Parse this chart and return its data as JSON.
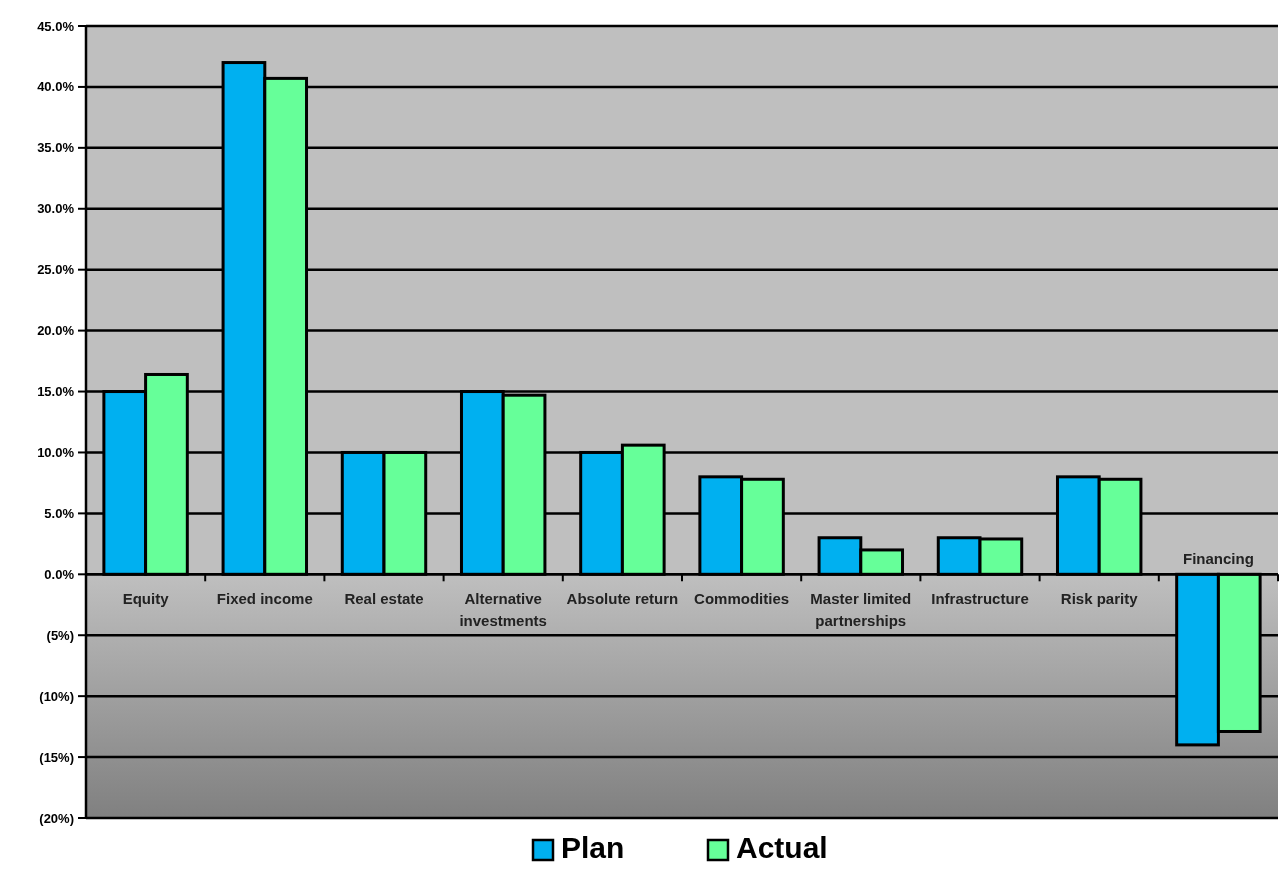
{
  "chart_data": {
    "type": "bar",
    "categories": [
      "Equity",
      "Fixed income",
      "Real estate",
      "Alternative investments",
      "Absolute return",
      "Commodities",
      "Master limited partnerships",
      "Infrastructure",
      "Risk parity",
      "Financing"
    ],
    "series": [
      {
        "name": "Plan",
        "color": "#00b0f0",
        "values": [
          15,
          42,
          10,
          15,
          10,
          8,
          3,
          3,
          8,
          -14
        ]
      },
      {
        "name": "Actual",
        "color": "#66ff99",
        "values": [
          16.4,
          40.7,
          10,
          14.7,
          10.6,
          7.8,
          2,
          2.9,
          7.8,
          -12.9
        ]
      }
    ],
    "ylim": [
      -20,
      45
    ],
    "yticks": [
      {
        "value": 45,
        "label": "45.0%"
      },
      {
        "value": 40,
        "label": "40.0%"
      },
      {
        "value": 35,
        "label": "35.0%"
      },
      {
        "value": 30,
        "label": "30.0%"
      },
      {
        "value": 25,
        "label": "25.0%"
      },
      {
        "value": 20,
        "label": "20.0%"
      },
      {
        "value": 15,
        "label": "15.0%"
      },
      {
        "value": 10,
        "label": "10.0%"
      },
      {
        "value": 5,
        "label": "5.0%"
      },
      {
        "value": 0,
        "label": "0.0%"
      },
      {
        "value": -5,
        "label": "(5%)"
      },
      {
        "value": -10,
        "label": "(10%)"
      },
      {
        "value": -15,
        "label": "(15%)"
      },
      {
        "value": -20,
        "label": "(20%)"
      }
    ],
    "grid": "y",
    "legend": "bottom"
  }
}
